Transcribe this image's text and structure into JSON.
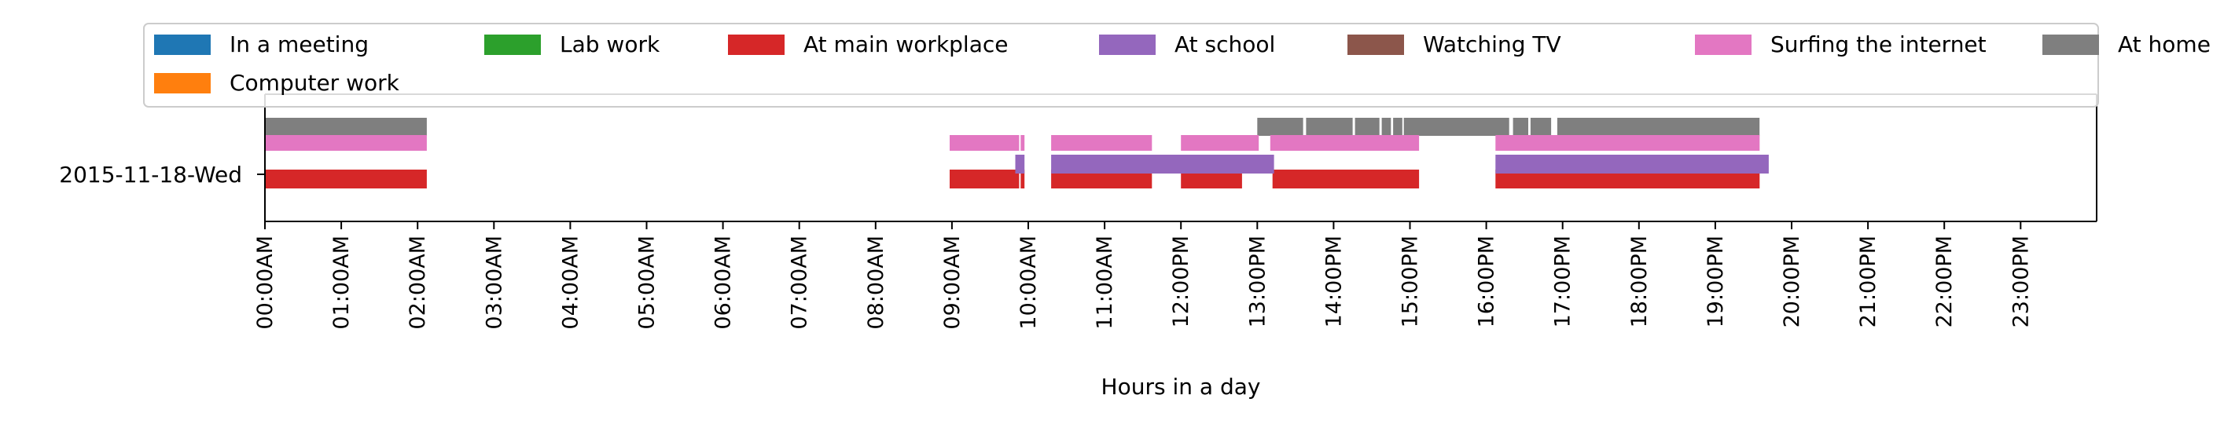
{
  "chart_data": {
    "type": "bar",
    "title": "",
    "xlabel": "Hours in a day",
    "ylabel": "",
    "xlim": [
      0,
      24
    ],
    "grid": false,
    "legend_placement": "top",
    "categories": [
      "2015-11-18-Wed"
    ],
    "x_ticks": [
      {
        "value": 0,
        "label": "00:00AM"
      },
      {
        "value": 1,
        "label": "01:00AM"
      },
      {
        "value": 2,
        "label": "02:00AM"
      },
      {
        "value": 3,
        "label": "03:00AM"
      },
      {
        "value": 4,
        "label": "04:00AM"
      },
      {
        "value": 5,
        "label": "05:00AM"
      },
      {
        "value": 6,
        "label": "06:00AM"
      },
      {
        "value": 7,
        "label": "07:00AM"
      },
      {
        "value": 8,
        "label": "08:00AM"
      },
      {
        "value": 9,
        "label": "09:00AM"
      },
      {
        "value": 10,
        "label": "10:00AM"
      },
      {
        "value": 11,
        "label": "11:00AM"
      },
      {
        "value": 12,
        "label": "12:00PM"
      },
      {
        "value": 13,
        "label": "13:00PM"
      },
      {
        "value": 14,
        "label": "14:00PM"
      },
      {
        "value": 15,
        "label": "15:00PM"
      },
      {
        "value": 16,
        "label": "16:00PM"
      },
      {
        "value": 17,
        "label": "17:00PM"
      },
      {
        "value": 18,
        "label": "18:00PM"
      },
      {
        "value": 19,
        "label": "19:00PM"
      },
      {
        "value": 20,
        "label": "20:00PM"
      },
      {
        "value": 21,
        "label": "21:00PM"
      },
      {
        "value": 22,
        "label": "22:00PM"
      },
      {
        "value": 23,
        "label": "23:00PM"
      }
    ],
    "series": [
      {
        "name": "In a meeting",
        "color": "#1f77b4",
        "intervals": []
      },
      {
        "name": "Lab work",
        "color": "#2ca02c",
        "intervals": []
      },
      {
        "name": "At main workplace",
        "color": "#d62728",
        "intervals": [
          [
            0.0,
            2.12
          ],
          [
            8.97,
            9.88
          ],
          [
            9.9,
            9.95
          ],
          [
            10.3,
            11.62
          ],
          [
            12.0,
            12.8
          ],
          [
            13.2,
            15.12
          ],
          [
            16.12,
            19.58
          ]
        ]
      },
      {
        "name": "At school",
        "color": "#9467bd",
        "intervals": [
          [
            9.83,
            9.95
          ],
          [
            10.3,
            13.22
          ],
          [
            16.12,
            19.7
          ]
        ]
      },
      {
        "name": "Watching TV",
        "color": "#8c564b",
        "intervals": []
      },
      {
        "name": "Surfing the internet",
        "color": "#e377c2",
        "intervals": [
          [
            0.0,
            2.12
          ],
          [
            8.97,
            9.88
          ],
          [
            9.9,
            9.95
          ],
          [
            10.3,
            11.62
          ],
          [
            12.0,
            13.02
          ],
          [
            13.17,
            15.12
          ],
          [
            16.12,
            19.58
          ]
        ]
      },
      {
        "name": "At home",
        "color": "#7f7f7f",
        "intervals": [
          [
            0.0,
            2.12
          ],
          [
            13.0,
            13.6
          ],
          [
            13.64,
            14.25
          ],
          [
            14.28,
            14.6
          ],
          [
            14.63,
            14.75
          ],
          [
            14.78,
            14.9
          ],
          [
            14.92,
            14.98
          ],
          [
            14.95,
            15.0
          ],
          [
            14.93,
            16.3
          ],
          [
            16.35,
            16.55
          ],
          [
            16.58,
            16.85
          ],
          [
            16.93,
            19.58
          ]
        ]
      },
      {
        "name": "Computer work",
        "color": "#ff7f0e",
        "intervals": []
      }
    ]
  }
}
